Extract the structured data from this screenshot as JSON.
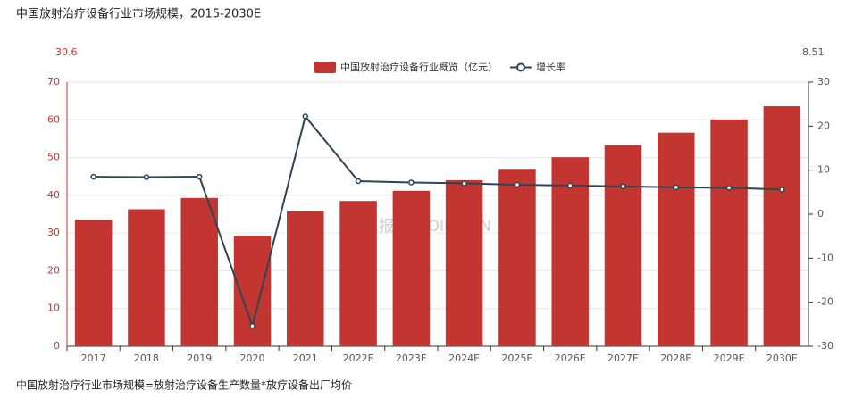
{
  "chart_data": {
    "type": "bar_line",
    "title": "中国放射治疗设备行业市场规模，2015-2030E",
    "left_annotation": "30.6",
    "right_annotation": "8.51",
    "note": "中国放射治疗行业市场规模=放射治疗设备生产数量*放疗设备出厂均价",
    "watermark": "行业报告 IPOIPO.CN",
    "categories": [
      "2017",
      "2018",
      "2019",
      "2020",
      "2021",
      "2022E",
      "2023E",
      "2024E",
      "2025E",
      "2026E",
      "2027E",
      "2028E",
      "2029E",
      "2030E"
    ],
    "series": [
      {
        "name": "中国放射治疗设备行业概览（亿元）",
        "type": "bar",
        "color": "#c23531",
        "values": [
          33.5,
          36.3,
          39.3,
          29.3,
          35.8,
          38.5,
          41.2,
          44.0,
          47.0,
          50.1,
          53.3,
          56.6,
          60.1,
          63.6
        ]
      },
      {
        "name": "增长率",
        "type": "line",
        "axis": "y2",
        "color": "#2f4554",
        "values": [
          8.5,
          8.4,
          8.5,
          -25.4,
          22.2,
          7.5,
          7.2,
          7.0,
          6.7,
          6.5,
          6.3,
          6.1,
          6.0,
          5.6
        ]
      }
    ],
    "ylim": [
      0,
      70
    ],
    "yticks": [
      0,
      10,
      20,
      30,
      40,
      50,
      60,
      70
    ],
    "y2lim": [
      -30,
      30
    ],
    "y2ticks": [
      -30,
      -20,
      -10,
      0,
      10,
      20,
      30
    ],
    "grid": true
  }
}
